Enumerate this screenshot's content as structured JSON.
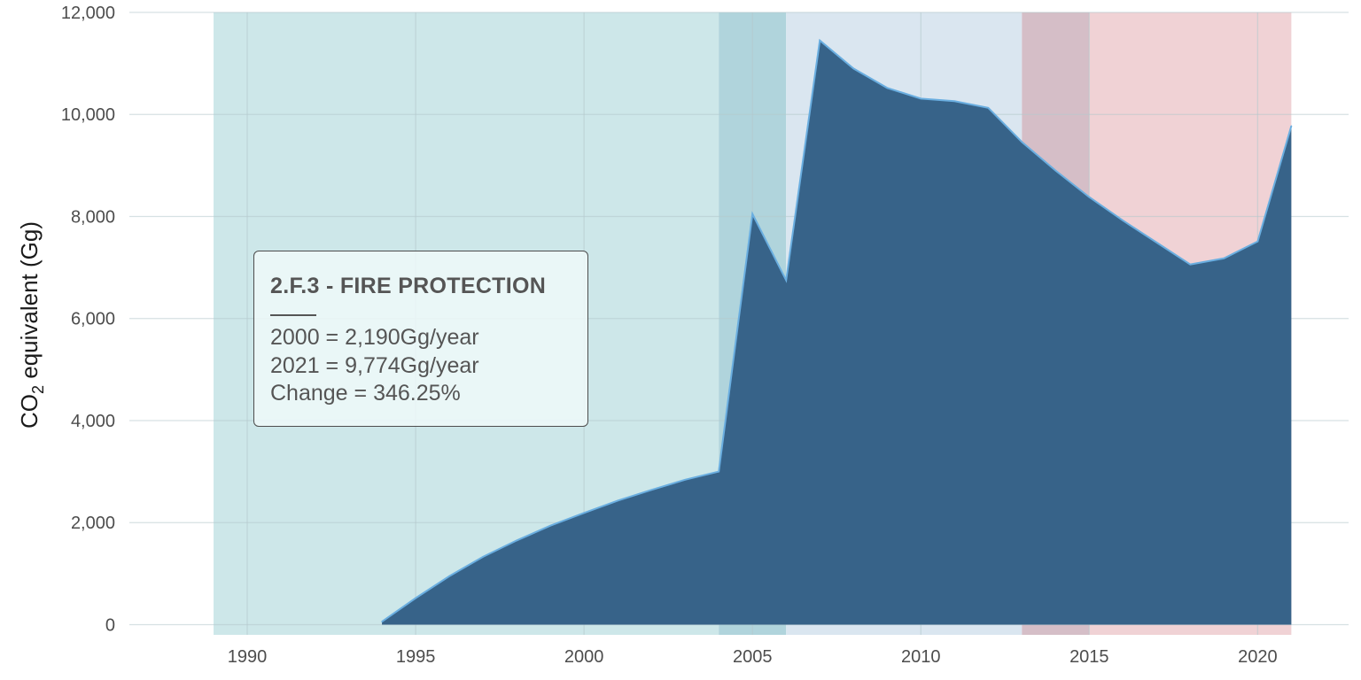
{
  "chart_data": {
    "type": "area",
    "title": "",
    "xlabel": "",
    "ylabel": {
      "prefix": "CO",
      "subscript": "2",
      "suffix": " equivalent (Gg)"
    },
    "xlim": [
      1986.5,
      2022.7
    ],
    "ylim": [
      -200,
      12000
    ],
    "x_ticks": [
      1990,
      1995,
      2000,
      2005,
      2010,
      2015,
      2020
    ],
    "x_tick_labels": [
      "1990",
      "1995",
      "2000",
      "2005",
      "2010",
      "2015",
      "2020"
    ],
    "y_ticks": [
      0,
      2000,
      4000,
      6000,
      8000,
      10000,
      12000
    ],
    "y_tick_labels": [
      "0",
      "2,000",
      "4,000",
      "6,000",
      "8,000",
      "10,000",
      "12,000"
    ],
    "grid": true,
    "series": [
      {
        "color": "#376389",
        "line_color": "#6aaee0",
        "x": [
          1994,
          1995,
          1996,
          1997,
          1998,
          1999,
          2000,
          2001,
          2002,
          2003,
          2004,
          2005,
          2006,
          2007,
          2008,
          2009,
          2010,
          2011,
          2012,
          2013,
          2014,
          2015,
          2016,
          2017,
          2018,
          2019,
          2020,
          2021
        ],
        "y": [
          60,
          520,
          950,
          1330,
          1650,
          1940,
          2190,
          2430,
          2640,
          2840,
          3000,
          8050,
          6750,
          11450,
          10900,
          10520,
          10310,
          10260,
          10130,
          9460,
          8900,
          8380,
          7920,
          7490,
          7060,
          7180,
          7510,
          9774
        ]
      }
    ],
    "background_bands": [
      {
        "x_start": 1989,
        "x_end": 2004,
        "color": "#cde7e9"
      },
      {
        "x_start": 2004,
        "x_end": 2006,
        "color": "#b0d4dc"
      },
      {
        "x_start": 2006,
        "x_end": 2013,
        "color": "#dae6f0"
      },
      {
        "x_start": 2013,
        "x_end": 2015,
        "color": "#d5bec7"
      },
      {
        "x_start": 2015,
        "x_end": 2021,
        "color": "#f0d2d5"
      }
    ]
  },
  "annotation": {
    "title": "2.F.3 - FIRE PROTECTION",
    "line1": "2000 = 2,190Gg/year",
    "line2": "2021 = 9,774Gg/year",
    "line3": "Change = 346.25%"
  }
}
